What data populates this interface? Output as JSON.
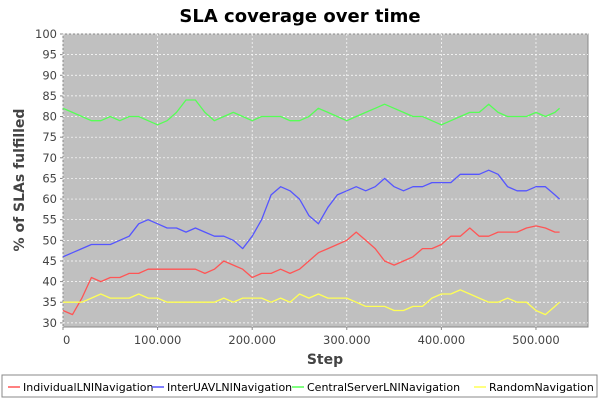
{
  "chart_data": {
    "type": "line",
    "title": "SLA coverage over time",
    "xlabel": "Step",
    "ylabel": "% of SLAs fulfilled",
    "xlim": [
      0,
      555000
    ],
    "ylim": [
      29,
      100
    ],
    "x_ticks": [
      0,
      100000,
      200000,
      300000,
      400000,
      500000
    ],
    "x_tick_labels": [
      "0",
      "100.000",
      "200.000",
      "300.000",
      "400.000",
      "500.000"
    ],
    "y_ticks": [
      30,
      35,
      40,
      45,
      50,
      55,
      60,
      65,
      70,
      75,
      80,
      85,
      90,
      95,
      100
    ],
    "y_tick_labels": [
      "30",
      "35",
      "40",
      "45",
      "50",
      "55",
      "60",
      "65",
      "70",
      "75",
      "80",
      "85",
      "90",
      "95",
      "100"
    ],
    "grid": true,
    "legend_position": "bottom",
    "plot_background": "#c0c0c0",
    "series": [
      {
        "name": "IndividualLNINavigation",
        "color": "#ff5555",
        "points": [
          [
            0,
            33
          ],
          [
            10000,
            32
          ],
          [
            20000,
            36
          ],
          [
            30000,
            41
          ],
          [
            40000,
            40
          ],
          [
            50000,
            41
          ],
          [
            60000,
            41
          ],
          [
            70000,
            42
          ],
          [
            80000,
            42
          ],
          [
            90000,
            43
          ],
          [
            100000,
            43
          ],
          [
            110000,
            43
          ],
          [
            120000,
            43
          ],
          [
            130000,
            43
          ],
          [
            140000,
            43
          ],
          [
            150000,
            42
          ],
          [
            160000,
            43
          ],
          [
            170000,
            45
          ],
          [
            180000,
            44
          ],
          [
            190000,
            43
          ],
          [
            200000,
            41
          ],
          [
            210000,
            42
          ],
          [
            220000,
            42
          ],
          [
            230000,
            43
          ],
          [
            240000,
            42
          ],
          [
            250000,
            43
          ],
          [
            260000,
            45
          ],
          [
            270000,
            47
          ],
          [
            280000,
            48
          ],
          [
            290000,
            49
          ],
          [
            300000,
            50
          ],
          [
            310000,
            52
          ],
          [
            320000,
            50
          ],
          [
            330000,
            48
          ],
          [
            340000,
            45
          ],
          [
            350000,
            44
          ],
          [
            360000,
            45
          ],
          [
            370000,
            46
          ],
          [
            380000,
            48
          ],
          [
            390000,
            48
          ],
          [
            400000,
            49
          ],
          [
            410000,
            51
          ],
          [
            420000,
            51
          ],
          [
            430000,
            53
          ],
          [
            440000,
            51
          ],
          [
            450000,
            51
          ],
          [
            460000,
            52
          ],
          [
            470000,
            52
          ],
          [
            480000,
            52
          ],
          [
            490000,
            53
          ],
          [
            500000,
            53.5
          ],
          [
            510000,
            53
          ],
          [
            520000,
            52
          ],
          [
            525000,
            52
          ]
        ]
      },
      {
        "name": "InterUAVLNINavigation",
        "color": "#5555ff",
        "points": [
          [
            0,
            46
          ],
          [
            10000,
            47
          ],
          [
            20000,
            48
          ],
          [
            30000,
            49
          ],
          [
            40000,
            49
          ],
          [
            50000,
            49
          ],
          [
            60000,
            50
          ],
          [
            70000,
            51
          ],
          [
            80000,
            54
          ],
          [
            90000,
            55
          ],
          [
            100000,
            54
          ],
          [
            110000,
            53
          ],
          [
            120000,
            53
          ],
          [
            130000,
            52
          ],
          [
            140000,
            53
          ],
          [
            150000,
            52
          ],
          [
            160000,
            51
          ],
          [
            170000,
            51
          ],
          [
            180000,
            50
          ],
          [
            190000,
            48
          ],
          [
            200000,
            51
          ],
          [
            210000,
            55
          ],
          [
            220000,
            61
          ],
          [
            230000,
            63
          ],
          [
            240000,
            62
          ],
          [
            250000,
            60
          ],
          [
            260000,
            56
          ],
          [
            270000,
            54
          ],
          [
            280000,
            58
          ],
          [
            290000,
            61
          ],
          [
            300000,
            62
          ],
          [
            310000,
            63
          ],
          [
            320000,
            62
          ],
          [
            330000,
            63
          ],
          [
            340000,
            65
          ],
          [
            350000,
            63
          ],
          [
            360000,
            62
          ],
          [
            370000,
            63
          ],
          [
            380000,
            63
          ],
          [
            390000,
            64
          ],
          [
            400000,
            64
          ],
          [
            410000,
            64
          ],
          [
            420000,
            66
          ],
          [
            430000,
            66
          ],
          [
            440000,
            66
          ],
          [
            450000,
            67
          ],
          [
            460000,
            66
          ],
          [
            470000,
            63
          ],
          [
            480000,
            62
          ],
          [
            490000,
            62
          ],
          [
            500000,
            63
          ],
          [
            510000,
            63
          ],
          [
            520000,
            61
          ],
          [
            525000,
            60
          ]
        ]
      },
      {
        "name": "CentralServerLNINavigation",
        "color": "#55ff55",
        "points": [
          [
            0,
            82
          ],
          [
            10000,
            81
          ],
          [
            20000,
            80
          ],
          [
            30000,
            79
          ],
          [
            40000,
            79
          ],
          [
            50000,
            80
          ],
          [
            60000,
            79
          ],
          [
            70000,
            80
          ],
          [
            80000,
            80
          ],
          [
            90000,
            79
          ],
          [
            100000,
            78
          ],
          [
            110000,
            79
          ],
          [
            120000,
            81
          ],
          [
            130000,
            84
          ],
          [
            140000,
            84
          ],
          [
            150000,
            81
          ],
          [
            160000,
            79
          ],
          [
            170000,
            80
          ],
          [
            180000,
            81
          ],
          [
            190000,
            80
          ],
          [
            200000,
            79
          ],
          [
            210000,
            80
          ],
          [
            220000,
            80
          ],
          [
            230000,
            80
          ],
          [
            240000,
            79
          ],
          [
            250000,
            79
          ],
          [
            260000,
            80
          ],
          [
            270000,
            82
          ],
          [
            280000,
            81
          ],
          [
            290000,
            80
          ],
          [
            300000,
            79
          ],
          [
            310000,
            80
          ],
          [
            320000,
            81
          ],
          [
            330000,
            82
          ],
          [
            340000,
            83
          ],
          [
            350000,
            82
          ],
          [
            360000,
            81
          ],
          [
            370000,
            80
          ],
          [
            380000,
            80
          ],
          [
            390000,
            79
          ],
          [
            400000,
            78
          ],
          [
            410000,
            79
          ],
          [
            420000,
            80
          ],
          [
            430000,
            81
          ],
          [
            440000,
            81
          ],
          [
            450000,
            83
          ],
          [
            460000,
            81
          ],
          [
            470000,
            80
          ],
          [
            480000,
            80
          ],
          [
            490000,
            80
          ],
          [
            500000,
            81
          ],
          [
            510000,
            80
          ],
          [
            520000,
            81
          ],
          [
            525000,
            82
          ]
        ]
      },
      {
        "name": "RandomNavigation",
        "color": "#ffff55",
        "points": [
          [
            0,
            35
          ],
          [
            10000,
            35
          ],
          [
            20000,
            35
          ],
          [
            30000,
            36
          ],
          [
            40000,
            37
          ],
          [
            50000,
            36
          ],
          [
            60000,
            36
          ],
          [
            70000,
            36
          ],
          [
            80000,
            37
          ],
          [
            90000,
            36
          ],
          [
            100000,
            36
          ],
          [
            110000,
            35
          ],
          [
            120000,
            35
          ],
          [
            130000,
            35
          ],
          [
            140000,
            35
          ],
          [
            150000,
            35
          ],
          [
            160000,
            35
          ],
          [
            170000,
            36
          ],
          [
            180000,
            35
          ],
          [
            190000,
            36
          ],
          [
            200000,
            36
          ],
          [
            210000,
            36
          ],
          [
            220000,
            35
          ],
          [
            230000,
            36
          ],
          [
            240000,
            35
          ],
          [
            250000,
            37
          ],
          [
            260000,
            36
          ],
          [
            270000,
            37
          ],
          [
            280000,
            36
          ],
          [
            290000,
            36
          ],
          [
            300000,
            36
          ],
          [
            310000,
            35
          ],
          [
            320000,
            34
          ],
          [
            330000,
            34
          ],
          [
            340000,
            34
          ],
          [
            350000,
            33
          ],
          [
            360000,
            33
          ],
          [
            370000,
            34
          ],
          [
            380000,
            34
          ],
          [
            390000,
            36
          ],
          [
            400000,
            37
          ],
          [
            410000,
            37
          ],
          [
            420000,
            38
          ],
          [
            430000,
            37
          ],
          [
            440000,
            36
          ],
          [
            450000,
            35
          ],
          [
            460000,
            35
          ],
          [
            470000,
            36
          ],
          [
            480000,
            35
          ],
          [
            490000,
            35
          ],
          [
            500000,
            33
          ],
          [
            510000,
            32
          ],
          [
            520000,
            34
          ],
          [
            525000,
            35
          ]
        ]
      }
    ]
  }
}
